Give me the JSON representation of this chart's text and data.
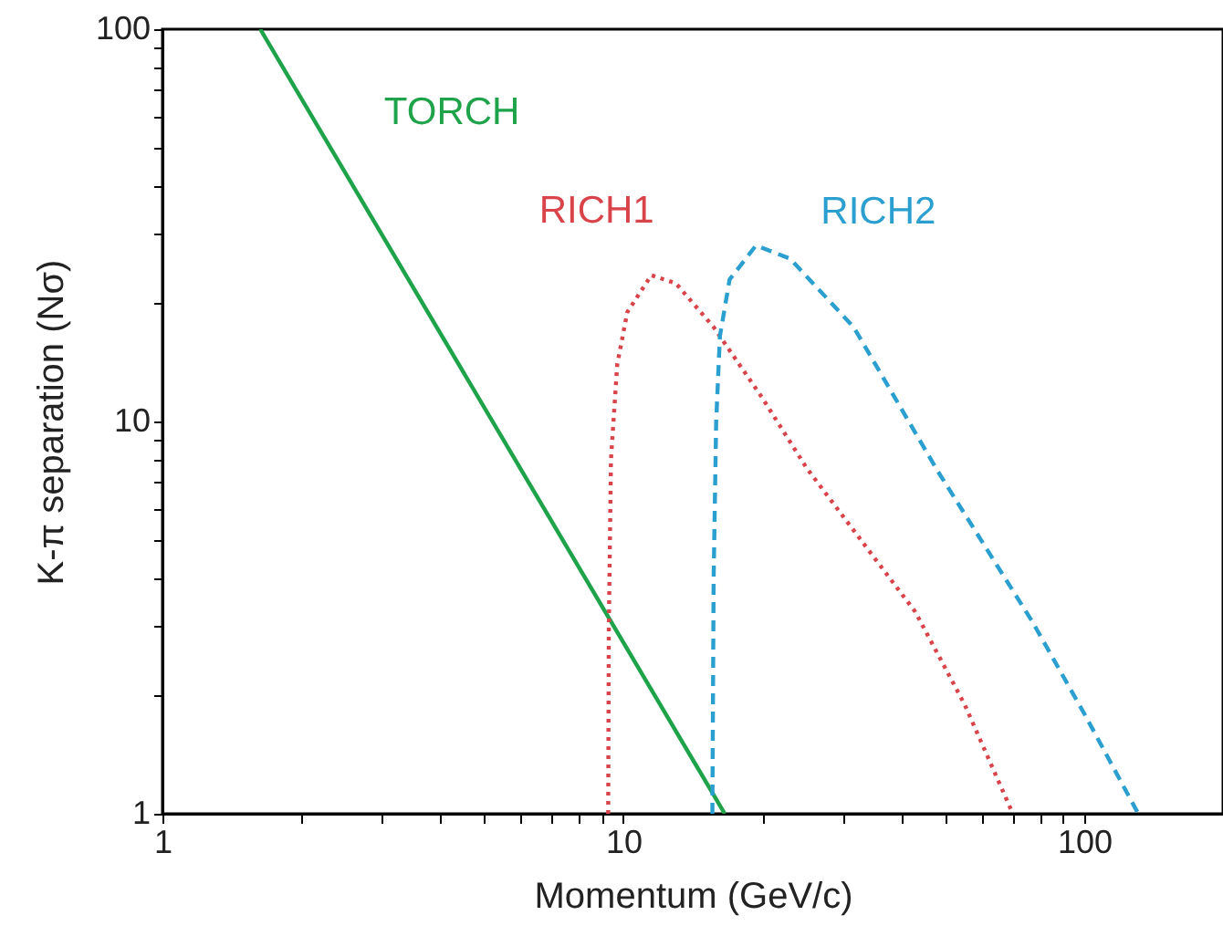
{
  "chart_data": {
    "type": "line",
    "xlabel": "Momentum  (GeV/c)",
    "ylabel": "K-π separation  (Nσ)",
    "log": "xy",
    "grid": false,
    "xlim": [
      1,
      200
    ],
    "ylim": [
      1,
      100
    ],
    "xticks": [
      1,
      {
        "value": 2,
        "label": null
      },
      {
        "value": 3,
        "label": null
      },
      {
        "value": 4,
        "label": null
      },
      {
        "value": 5,
        "label": null
      },
      {
        "value": 6,
        "label": null
      },
      {
        "value": 7,
        "label": null
      },
      {
        "value": 8,
        "label": null
      },
      {
        "value": 9,
        "label": null
      },
      10,
      {
        "value": 20,
        "label": null
      },
      {
        "value": 30,
        "label": null
      },
      {
        "value": 40,
        "label": null
      },
      {
        "value": 50,
        "label": null
      },
      {
        "value": 60,
        "label": null
      },
      {
        "value": 70,
        "label": null
      },
      {
        "value": 80,
        "label": null
      },
      {
        "value": 90,
        "label": null
      },
      100
    ],
    "yticks": [
      1,
      {
        "value": 2,
        "label": null
      },
      {
        "value": 3,
        "label": null
      },
      {
        "value": 4,
        "label": null
      },
      {
        "value": 5,
        "label": null
      },
      {
        "value": 6,
        "label": null
      },
      {
        "value": 7,
        "label": null
      },
      {
        "value": 8,
        "label": null
      },
      {
        "value": 9,
        "label": null
      },
      10,
      {
        "value": 20,
        "label": null
      },
      {
        "value": 30,
        "label": null
      },
      {
        "value": 40,
        "label": null
      },
      {
        "value": 50,
        "label": null
      },
      {
        "value": 60,
        "label": null
      },
      {
        "value": 70,
        "label": null
      },
      {
        "value": 80,
        "label": null
      },
      {
        "value": 90,
        "label": null
      },
      100
    ],
    "series": [
      {
        "name": "TORCH",
        "color": "#1fa34a",
        "line_style": "solid",
        "x": [
          1.63,
          16.6
        ],
        "values": [
          100,
          1
        ]
      },
      {
        "name": "RICH1",
        "color": "#d9434a",
        "line_style": "dotted",
        "x": [
          9.27,
          9.3,
          9.4,
          9.7,
          10.2,
          11.5,
          13,
          15.7,
          20,
          25,
          35,
          43,
          55,
          70
        ],
        "values": [
          1,
          3,
          8,
          14,
          19,
          23.6,
          22.5,
          17.4,
          11.5,
          7.6,
          4.5,
          3.27,
          1.9,
          1
        ]
      },
      {
        "name": "RICH2",
        "color": "#2b9fd0",
        "line_style": "dashed",
        "x": [
          15.6,
          15.7,
          15.9,
          16.2,
          17,
          19.4,
          23,
          31.6,
          48,
          77,
          100,
          131
        ],
        "values": [
          1,
          4,
          10,
          16.5,
          23,
          28.1,
          26,
          17.4,
          7.5,
          3.1,
          1.8,
          1
        ]
      }
    ]
  }
}
